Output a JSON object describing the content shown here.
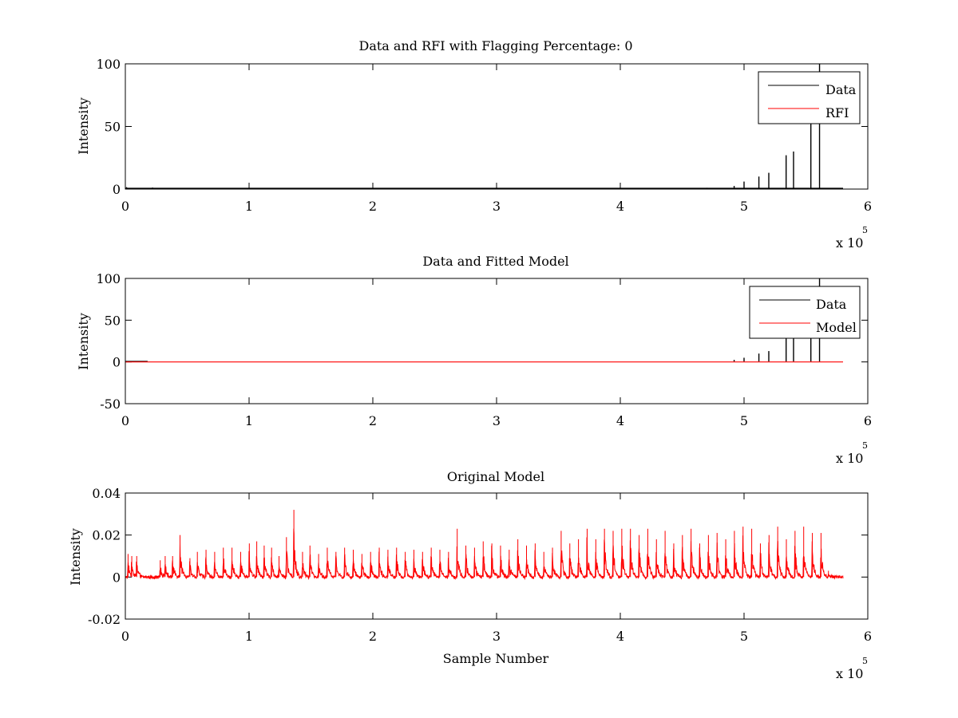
{
  "chart_data": [
    {
      "type": "line",
      "title": "Data and RFI with Flagging Percentage: 0",
      "xlabel": "",
      "ylabel": "Intensity",
      "xlim": [
        0,
        600000
      ],
      "ylim": [
        0,
        100
      ],
      "xticks": [
        0,
        1,
        2,
        3,
        4,
        5,
        6
      ],
      "yticks": [
        0,
        50,
        100
      ],
      "x_exponent_label": "x 10",
      "x_exponent": "5",
      "legend": {
        "placement": "top-right",
        "entries": [
          "Data",
          "RFI"
        ]
      },
      "series": [
        {
          "name": "Data",
          "color": "#000000",
          "spikes": [
            {
              "x": 1000,
              "y": 1.5
            },
            {
              "x": 22000,
              "y": 1.2
            },
            {
              "x": 159000,
              "y": 0.6
            },
            {
              "x": 318000,
              "y": 0.8
            },
            {
              "x": 350000,
              "y": 0.8
            },
            {
              "x": 372000,
              "y": 0.6
            },
            {
              "x": 420000,
              "y": 0.6
            },
            {
              "x": 455000,
              "y": 0.9
            },
            {
              "x": 470000,
              "y": 1.0
            },
            {
              "x": 477000,
              "y": 0.7
            },
            {
              "x": 492000,
              "y": 2.5
            },
            {
              "x": 500000,
              "y": 6.0
            },
            {
              "x": 512000,
              "y": 10.0
            },
            {
              "x": 520000,
              "y": 13.0
            },
            {
              "x": 534000,
              "y": 27.0
            },
            {
              "x": 540000,
              "y": 30.0
            },
            {
              "x": 554000,
              "y": 60.0
            },
            {
              "x": 561000,
              "y": 100.0
            }
          ],
          "baseline": 0.5,
          "x_end": 580000
        },
        {
          "name": "RFI",
          "color": "#ff0000",
          "values": []
        }
      ]
    },
    {
      "type": "line",
      "title": "Data and Fitted Model",
      "xlabel": "",
      "ylabel": "Intensity",
      "xlim": [
        0,
        600000
      ],
      "ylim": [
        -50,
        100
      ],
      "xticks": [
        0,
        1,
        2,
        3,
        4,
        5,
        6
      ],
      "yticks": [
        -50,
        0,
        50,
        100
      ],
      "x_exponent_label": "x 10",
      "x_exponent": "5",
      "legend": {
        "placement": "top-right",
        "entries": [
          "Data",
          "Model"
        ]
      },
      "series": [
        {
          "name": "Data",
          "color": "#000000",
          "spikes": [
            {
              "x": 492000,
              "y": 2.5
            },
            {
              "x": 500000,
              "y": 5.0
            },
            {
              "x": 512000,
              "y": 10.0
            },
            {
              "x": 520000,
              "y": 13.0
            },
            {
              "x": 534000,
              "y": 28.0
            },
            {
              "x": 540000,
              "y": 30.0
            },
            {
              "x": 554000,
              "y": 60.0
            },
            {
              "x": 561000,
              "y": 100.0
            }
          ],
          "baseline": 0.5,
          "x_end": 18000
        },
        {
          "name": "Model",
          "color": "#ff0000",
          "constant": 0.0,
          "x_start": 0,
          "x_end": 580000
        }
      ]
    },
    {
      "type": "line",
      "title": "Original Model",
      "xlabel": "Sample Number",
      "ylabel": "Intensity",
      "xlim": [
        0,
        600000
      ],
      "ylim": [
        -0.02,
        0.04
      ],
      "xticks": [
        0,
        1,
        2,
        3,
        4,
        5,
        6
      ],
      "yticks": [
        -0.02,
        0,
        0.02,
        0.04
      ],
      "ytick_labels": [
        "-0.02",
        "0",
        "0.02",
        "0.04"
      ],
      "x_exponent_label": "x 10",
      "x_exponent": "5",
      "series": [
        {
          "name": "",
          "color": "#ff0000",
          "x_end": 580000,
          "bursts": [
            {
              "x": 2000,
              "y": 0.011
            },
            {
              "x": 5000,
              "y": 0.01
            },
            {
              "x": 9000,
              "y": 0.01
            },
            {
              "x": 28000,
              "y": 0.008
            },
            {
              "x": 32000,
              "y": 0.01
            },
            {
              "x": 38000,
              "y": 0.01
            },
            {
              "x": 44000,
              "y": 0.02
            },
            {
              "x": 52000,
              "y": 0.009
            },
            {
              "x": 58000,
              "y": 0.012
            },
            {
              "x": 65000,
              "y": 0.013
            },
            {
              "x": 72000,
              "y": 0.012
            },
            {
              "x": 79000,
              "y": 0.014
            },
            {
              "x": 86000,
              "y": 0.014
            },
            {
              "x": 93000,
              "y": 0.012
            },
            {
              "x": 100000,
              "y": 0.016
            },
            {
              "x": 106000,
              "y": 0.017
            },
            {
              "x": 112000,
              "y": 0.015
            },
            {
              "x": 118000,
              "y": 0.014
            },
            {
              "x": 124000,
              "y": 0.01
            },
            {
              "x": 130000,
              "y": 0.019
            },
            {
              "x": 136000,
              "y": 0.032
            },
            {
              "x": 143000,
              "y": 0.012
            },
            {
              "x": 149000,
              "y": 0.015
            },
            {
              "x": 156000,
              "y": 0.011
            },
            {
              "x": 163000,
              "y": 0.014
            },
            {
              "x": 170000,
              "y": 0.012
            },
            {
              "x": 177000,
              "y": 0.014
            },
            {
              "x": 184000,
              "y": 0.013
            },
            {
              "x": 191000,
              "y": 0.011
            },
            {
              "x": 198000,
              "y": 0.012
            },
            {
              "x": 205000,
              "y": 0.014
            },
            {
              "x": 212000,
              "y": 0.013
            },
            {
              "x": 219000,
              "y": 0.014
            },
            {
              "x": 226000,
              "y": 0.012
            },
            {
              "x": 233000,
              "y": 0.013
            },
            {
              "x": 240000,
              "y": 0.012
            },
            {
              "x": 247000,
              "y": 0.014
            },
            {
              "x": 254000,
              "y": 0.013
            },
            {
              "x": 261000,
              "y": 0.012
            },
            {
              "x": 268000,
              "y": 0.023
            },
            {
              "x": 275000,
              "y": 0.015
            },
            {
              "x": 282000,
              "y": 0.014
            },
            {
              "x": 289000,
              "y": 0.017
            },
            {
              "x": 296000,
              "y": 0.016
            },
            {
              "x": 303000,
              "y": 0.015
            },
            {
              "x": 310000,
              "y": 0.013
            },
            {
              "x": 317000,
              "y": 0.018
            },
            {
              "x": 324000,
              "y": 0.015
            },
            {
              "x": 331000,
              "y": 0.016
            },
            {
              "x": 338000,
              "y": 0.012
            },
            {
              "x": 345000,
              "y": 0.014
            },
            {
              "x": 352000,
              "y": 0.022
            },
            {
              "x": 359000,
              "y": 0.016
            },
            {
              "x": 366000,
              "y": 0.018
            },
            {
              "x": 373000,
              "y": 0.023
            },
            {
              "x": 380000,
              "y": 0.018
            },
            {
              "x": 387000,
              "y": 0.023
            },
            {
              "x": 394000,
              "y": 0.022
            },
            {
              "x": 401000,
              "y": 0.023
            },
            {
              "x": 408000,
              "y": 0.023
            },
            {
              "x": 415000,
              "y": 0.02
            },
            {
              "x": 422000,
              "y": 0.023
            },
            {
              "x": 429000,
              "y": 0.018
            },
            {
              "x": 436000,
              "y": 0.022
            },
            {
              "x": 443000,
              "y": 0.016
            },
            {
              "x": 450000,
              "y": 0.02
            },
            {
              "x": 457000,
              "y": 0.023
            },
            {
              "x": 464000,
              "y": 0.016
            },
            {
              "x": 471000,
              "y": 0.02
            },
            {
              "x": 478000,
              "y": 0.021
            },
            {
              "x": 485000,
              "y": 0.018
            },
            {
              "x": 492000,
              "y": 0.022
            },
            {
              "x": 499000,
              "y": 0.024
            },
            {
              "x": 506000,
              "y": 0.023
            },
            {
              "x": 513000,
              "y": 0.016
            },
            {
              "x": 520000,
              "y": 0.02
            },
            {
              "x": 527000,
              "y": 0.024
            },
            {
              "x": 534000,
              "y": 0.018
            },
            {
              "x": 541000,
              "y": 0.022
            },
            {
              "x": 548000,
              "y": 0.024
            },
            {
              "x": 555000,
              "y": 0.021
            },
            {
              "x": 562000,
              "y": 0.021
            },
            {
              "x": 568000,
              "y": 0.003
            }
          ]
        }
      ]
    }
  ]
}
